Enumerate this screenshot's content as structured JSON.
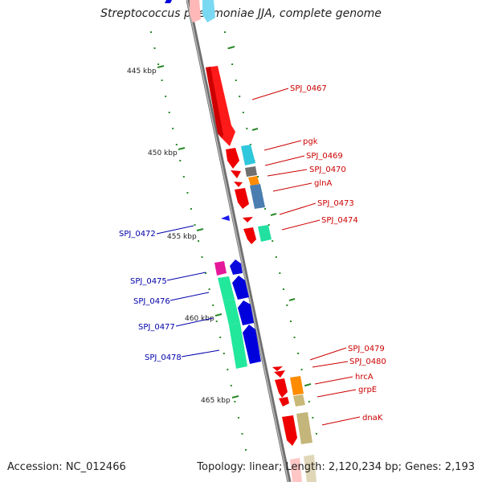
{
  "title": "Streptococcus pneumoniae JJA, complete genome",
  "footer": {
    "accession": "Accession: NC_012466",
    "summary": "Topology: linear; Length: 2,120,234 bp; Genes: 2,193"
  },
  "colors": {
    "forward_label": "#cc0000",
    "reverse_label": "#0000aa",
    "backbone": "#888888",
    "tick_dot": "#2a8a2a"
  },
  "scale_ticks": [
    {
      "label": "445 kbp"
    },
    {
      "label": "450 kbp"
    },
    {
      "label": "455 kbp"
    },
    {
      "label": "460 kbp"
    },
    {
      "label": "465 kbp"
    }
  ],
  "gene_labels": [
    {
      "name": "SPJ_0467",
      "strand": "forward"
    },
    {
      "name": "pgk",
      "strand": "forward"
    },
    {
      "name": "SPJ_0469",
      "strand": "forward"
    },
    {
      "name": "SPJ_0470",
      "strand": "forward"
    },
    {
      "name": "glnA",
      "strand": "forward"
    },
    {
      "name": "SPJ_0473",
      "strand": "forward"
    },
    {
      "name": "SPJ_0474",
      "strand": "forward"
    },
    {
      "name": "SPJ_0472",
      "strand": "reverse"
    },
    {
      "name": "SPJ_0475",
      "strand": "reverse"
    },
    {
      "name": "SPJ_0476",
      "strand": "reverse"
    },
    {
      "name": "SPJ_0477",
      "strand": "reverse"
    },
    {
      "name": "SPJ_0478",
      "strand": "reverse"
    },
    {
      "name": "SPJ_0479",
      "strand": "forward"
    },
    {
      "name": "SPJ_0480",
      "strand": "forward"
    },
    {
      "name": "hrcA",
      "strand": "forward"
    },
    {
      "name": "grpE",
      "strand": "forward"
    },
    {
      "name": "dnaK",
      "strand": "forward"
    }
  ]
}
